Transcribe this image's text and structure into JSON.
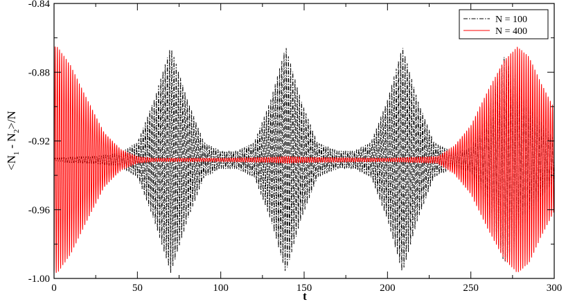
{
  "chart_data": {
    "type": "line",
    "xlabel": "t",
    "ylabel_parts": {
      "a": "<N",
      "s1": "1",
      "b": " - N",
      "s2": "2",
      "c": ">/N"
    },
    "xlim": [
      0,
      300
    ],
    "ylim": [
      -1.0,
      -0.84
    ],
    "x_ticks": [
      0,
      50,
      100,
      150,
      200,
      250,
      300
    ],
    "x_tick_labels": [
      "0",
      "50",
      "100",
      "150",
      "200",
      "250",
      "300"
    ],
    "y_ticks": [
      -1.0,
      -0.96,
      -0.92,
      -0.88,
      -0.84
    ],
    "y_tick_labels": [
      "-1.00",
      "-0.96",
      "-0.92",
      "-0.88",
      "-0.84"
    ],
    "grid": false,
    "legend_position": "top-right",
    "series": [
      {
        "name": "N = 100",
        "color": "#000000",
        "style": "dash-dot",
        "center": -0.931,
        "period": 1.32,
        "envelope": {
          "t": [
            0,
            2,
            10,
            25,
            40,
            50,
            60,
            70,
            80,
            90,
            100,
            110,
            120,
            130,
            139,
            148,
            158,
            170,
            180,
            190,
            200,
            209,
            218,
            228,
            240,
            250,
            260,
            270,
            280,
            290,
            300
          ],
          "amp": [
            0.001,
            0.001,
            0.0015,
            0.002,
            0.004,
            0.01,
            0.035,
            0.066,
            0.035,
            0.01,
            0.005,
            0.005,
            0.01,
            0.035,
            0.066,
            0.035,
            0.01,
            0.005,
            0.005,
            0.01,
            0.035,
            0.066,
            0.035,
            0.01,
            0.004,
            0.007,
            0.03,
            0.06,
            0.045,
            0.025,
            0.012
          ]
        }
      },
      {
        "name": "N = 400",
        "color": "#ff0000",
        "style": "solid",
        "center": -0.931,
        "period": 1.32,
        "envelope": {
          "t": [
            0,
            2,
            10,
            20,
            30,
            40,
            50,
            60,
            100,
            130,
            140,
            150,
            200,
            230,
            240,
            250,
            260,
            270,
            278,
            285,
            292,
            300
          ],
          "amp": [
            0.066,
            0.066,
            0.055,
            0.035,
            0.016,
            0.006,
            0.002,
            0.001,
            0.001,
            0.0015,
            0.002,
            0.0015,
            0.001,
            0.002,
            0.008,
            0.02,
            0.04,
            0.058,
            0.066,
            0.06,
            0.045,
            0.03
          ]
        }
      }
    ]
  }
}
